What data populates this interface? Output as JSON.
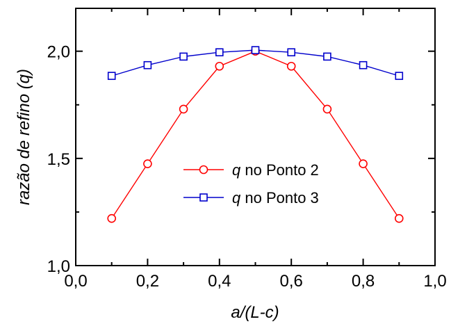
{
  "chart_data": {
    "type": "line",
    "xlabel": "a/(L-c)",
    "ylabel": "razão de refino (q)",
    "xlim": [
      0.0,
      1.0
    ],
    "ylim": [
      1.0,
      2.2
    ],
    "x_ticks": [
      "0,0",
      "0,2",
      "0,4",
      "0,6",
      "0,8",
      "1,0"
    ],
    "y_ticks": [
      "1,0",
      "1,5",
      "2,0"
    ],
    "grid": false,
    "legend_position": "center",
    "series": [
      {
        "name_prefix": "q",
        "name_suffix": " no Ponto 2",
        "color": "#ff0000",
        "marker": "circle",
        "x": [
          0.1,
          0.2,
          0.3,
          0.4,
          0.5,
          0.6,
          0.7,
          0.8,
          0.9
        ],
        "y": [
          1.22,
          1.475,
          1.73,
          1.93,
          2.0,
          1.93,
          1.73,
          1.475,
          1.22
        ]
      },
      {
        "name_prefix": "q",
        "name_suffix": " no Ponto 3",
        "color": "#0000cc",
        "marker": "square",
        "x": [
          0.1,
          0.2,
          0.3,
          0.4,
          0.5,
          0.6,
          0.7,
          0.8,
          0.9
        ],
        "y": [
          1.885,
          1.935,
          1.975,
          1.995,
          2.005,
          1.995,
          1.975,
          1.935,
          1.885
        ]
      }
    ]
  }
}
